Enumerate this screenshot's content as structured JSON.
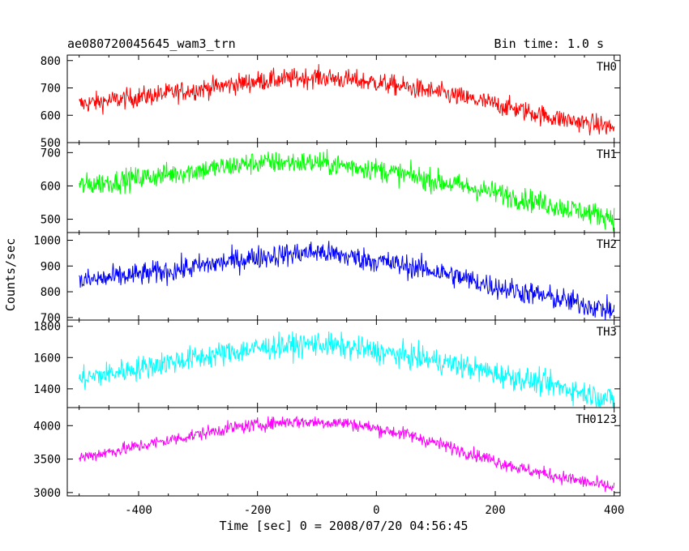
{
  "chart_data": {
    "type": "line",
    "title": "ae080720045645_wam3_trn",
    "bin_time_label": "Bin time: 1.0 s",
    "xlabel": "Time [sec] 0 = 2008/07/20 04:56:45",
    "ylabel": "Counts/sec",
    "xlim": [
      -520,
      410
    ],
    "x_ticks": [
      -400,
      -200,
      0,
      200,
      400
    ],
    "x_start": -500,
    "x_end": 400,
    "x_step": 1,
    "grid": false,
    "legend": "none",
    "panels": [
      {
        "name": "TH0",
        "color": "#ff0000",
        "ylim": [
          500,
          820
        ],
        "y_ticks": [
          500,
          600,
          700,
          800
        ],
        "trend": {
          "x": [
            -500,
            -350,
            -200,
            -100,
            0,
            100,
            200,
            300,
            400
          ],
          "y": [
            640,
            680,
            725,
            740,
            720,
            685,
            640,
            590,
            555
          ]
        },
        "noise": 26
      },
      {
        "name": "TH1",
        "color": "#00ff00",
        "ylim": [
          460,
          730
        ],
        "y_ticks": [
          500,
          600,
          700
        ],
        "trend": {
          "x": [
            -500,
            -350,
            -200,
            -100,
            0,
            100,
            200,
            300,
            400
          ],
          "y": [
            600,
            635,
            670,
            670,
            650,
            615,
            580,
            540,
            505
          ]
        },
        "noise": 24
      },
      {
        "name": "TH2",
        "color": "#0000ff",
        "ylim": [
          690,
          1030
        ],
        "y_ticks": [
          700,
          800,
          900,
          1000
        ],
        "trend": {
          "x": [
            -500,
            -350,
            -200,
            -100,
            0,
            100,
            200,
            300,
            400
          ],
          "y": [
            840,
            880,
            935,
            955,
            920,
            880,
            820,
            775,
            725
          ]
        },
        "noise": 32
      },
      {
        "name": "TH3",
        "color": "#00ffff",
        "ylim": [
          1280,
          1840
        ],
        "y_ticks": [
          1400,
          1600,
          1800
        ],
        "trend": {
          "x": [
            -500,
            -350,
            -200,
            -100,
            0,
            100,
            200,
            300,
            400
          ],
          "y": [
            1460,
            1570,
            1660,
            1690,
            1640,
            1580,
            1500,
            1420,
            1330
          ]
        },
        "noise": 55
      },
      {
        "name": "TH0123",
        "color": "#ff00ff",
        "ylim": [
          2950,
          4270
        ],
        "y_ticks": [
          3000,
          3500,
          4000
        ],
        "trend": {
          "x": [
            -500,
            -350,
            -250,
            -150,
            -50,
            50,
            150,
            250,
            400
          ],
          "y": [
            3520,
            3780,
            3960,
            4060,
            4040,
            3870,
            3610,
            3340,
            3070
          ]
        },
        "noise": 70
      }
    ]
  }
}
